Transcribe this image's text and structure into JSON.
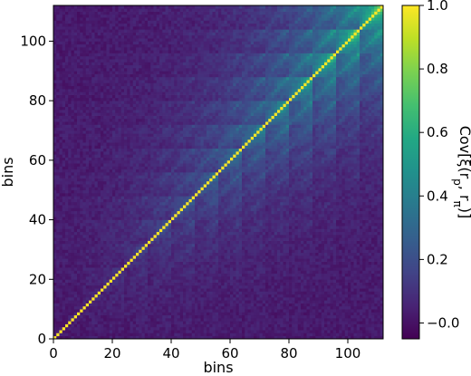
{
  "chart_data": {
    "type": "heatmap",
    "title": "",
    "xlabel": "bins",
    "ylabel": "bins",
    "n_bins": 112,
    "block_size": 8,
    "n_blocks": 14,
    "xlim": [
      0,
      112
    ],
    "ylim": [
      0,
      112
    ],
    "xticks": [
      0,
      20,
      40,
      60,
      80,
      100
    ],
    "yticks": [
      0,
      20,
      40,
      60,
      80,
      100
    ],
    "colormap": "viridis",
    "diagonal_value": 1.0,
    "description": "Covariance matrix with unit diagonal; off-diagonal values form a repeating 8x8 block pattern that strengthens toward higher bins.",
    "colorbar": {
      "label_plain": "Cov[ξ(r",
      "label_sub1": "p",
      "label_mid": ", r",
      "label_sub2": "π",
      "label_end": ")]",
      "range": [
        -0.05,
        1.0
      ],
      "ticks": [
        -0.0,
        0.2,
        0.4,
        0.6,
        0.8,
        1.0
      ],
      "tick_labels": [
        "−0.0",
        "0.2",
        "0.4",
        "0.6",
        "0.8",
        "1.0"
      ]
    }
  }
}
